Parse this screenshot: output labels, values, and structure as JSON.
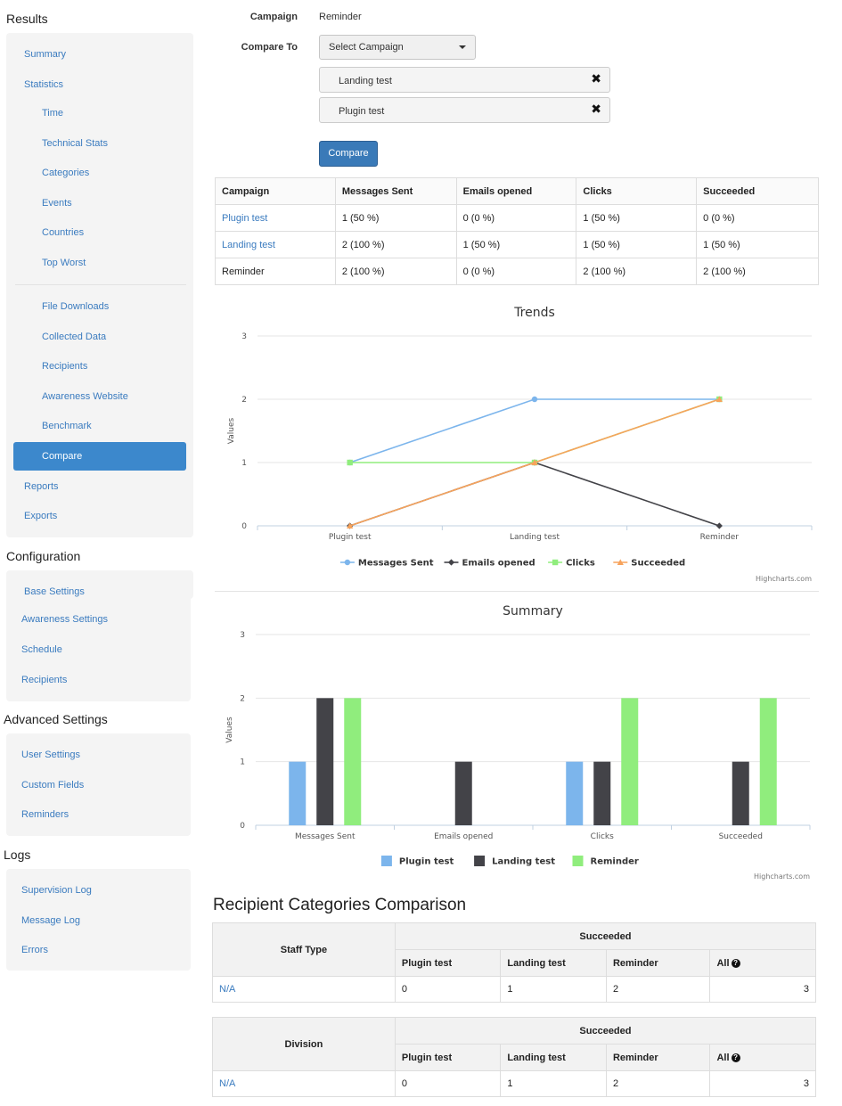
{
  "sidebar": {
    "results": {
      "title": "Results",
      "items": [
        "Summary",
        "Statistics"
      ],
      "statistics_sub": [
        "Time",
        "Technical Stats",
        "Categories",
        "Events",
        "Countries",
        "Top Worst"
      ],
      "extra_sub": [
        "File Downloads",
        "Collected Data",
        "Recipients",
        "Awareness Website",
        "Benchmark",
        "Compare"
      ],
      "after": [
        "Reports",
        "Exports"
      ],
      "active": "Compare"
    },
    "configuration": {
      "title": "Configuration",
      "items": [
        "Base Settings",
        "Awareness Settings",
        "Schedule",
        "Recipients"
      ]
    },
    "advanced": {
      "title": "Advanced Settings",
      "items": [
        "User Settings",
        "Custom Fields",
        "Reminders"
      ]
    },
    "logs": {
      "title": "Logs",
      "items": [
        "Supervision Log",
        "Message Log",
        "Errors"
      ]
    }
  },
  "form": {
    "campaign_label": "Campaign",
    "campaign_value": "Reminder",
    "compare_label": "Compare To",
    "select_placeholder": "Select Campaign",
    "chips": [
      "Landing test",
      "Plugin test"
    ],
    "compare_button": "Compare"
  },
  "comparison_table": {
    "headers": [
      "Campaign",
      "Messages Sent",
      "Emails opened",
      "Clicks",
      "Succeeded"
    ],
    "rows": [
      {
        "campaign": "Plugin test",
        "link": true,
        "values": [
          "1 (50 %)",
          "0 (0 %)",
          "1 (50 %)",
          "0 (0 %)"
        ]
      },
      {
        "campaign": "Landing test",
        "link": true,
        "values": [
          "2 (100 %)",
          "1 (50 %)",
          "1 (50 %)",
          "1 (50 %)"
        ]
      },
      {
        "campaign": "Reminder",
        "link": false,
        "values": [
          "2 (100 %)",
          "0 (0 %)",
          "2 (100 %)",
          "2 (100 %)"
        ]
      }
    ]
  },
  "chart_data": [
    {
      "type": "line",
      "title": "Trends",
      "ylabel": "Values",
      "xlabel": "",
      "categories": [
        "Plugin test",
        "Landing test",
        "Reminder"
      ],
      "ylim": [
        0,
        3
      ],
      "yticks": [
        0,
        1,
        2,
        3
      ],
      "grid": true,
      "legend": "bottom",
      "credits": "Highcharts.com",
      "series": [
        {
          "name": "Messages Sent",
          "values": [
            1,
            2,
            2
          ],
          "color": "#7cb5ec",
          "marker": "circle"
        },
        {
          "name": "Emails opened",
          "values": [
            0,
            1,
            0
          ],
          "color": "#434348",
          "marker": "diamond"
        },
        {
          "name": "Clicks",
          "values": [
            1,
            1,
            2
          ],
          "color": "#90ed7d",
          "marker": "square"
        },
        {
          "name": "Succeeded",
          "values": [
            0,
            1,
            2
          ],
          "color": "#f7a35c",
          "marker": "triangle"
        }
      ]
    },
    {
      "type": "bar",
      "title": "Summary",
      "ylabel": "Values",
      "xlabel": "",
      "categories": [
        "Messages Sent",
        "Emails opened",
        "Clicks",
        "Succeeded"
      ],
      "ylim": [
        0,
        3
      ],
      "yticks": [
        0,
        1,
        2,
        3
      ],
      "grid": true,
      "legend": "bottom",
      "credits": "Highcharts.com",
      "series": [
        {
          "name": "Plugin test",
          "values": [
            1,
            0,
            1,
            0
          ],
          "color": "#7cb5ec"
        },
        {
          "name": "Landing test",
          "values": [
            2,
            1,
            1,
            1
          ],
          "color": "#434348"
        },
        {
          "name": "Reminder",
          "values": [
            2,
            0,
            2,
            2
          ],
          "color": "#90ed7d"
        }
      ]
    }
  ],
  "recipient_categories": {
    "title": "Recipient Categories Comparison",
    "tables": [
      {
        "group_label": "Staff Type",
        "metric_label": "Succeeded",
        "columns": [
          "Plugin test",
          "Landing test",
          "Reminder",
          "All"
        ],
        "rows": [
          {
            "label": "N/A",
            "values": [
              "0",
              "1",
              "2",
              "3"
            ]
          }
        ]
      },
      {
        "group_label": "Division",
        "metric_label": "Succeeded",
        "columns": [
          "Plugin test",
          "Landing test",
          "Reminder",
          "All"
        ],
        "rows": [
          {
            "label": "N/A",
            "values": [
              "0",
              "1",
              "2",
              "3"
            ]
          }
        ]
      }
    ]
  }
}
